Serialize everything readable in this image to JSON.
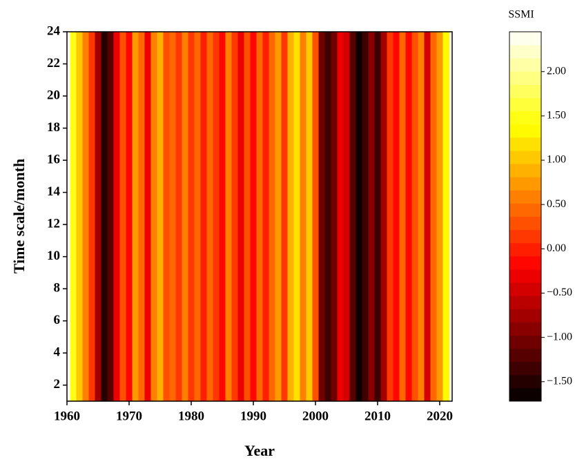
{
  "chart_data": {
    "type": "heatmap",
    "xlabel": "Year",
    "ylabel": "Time scale/month",
    "colorbar_label": "SSMI",
    "colormap": "hot",
    "x": [
      1961,
      1962,
      1963,
      1964,
      1965,
      1966,
      1967,
      1968,
      1969,
      1970,
      1971,
      1972,
      1973,
      1974,
      1975,
      1976,
      1977,
      1978,
      1979,
      1980,
      1981,
      1982,
      1983,
      1984,
      1985,
      1986,
      1987,
      1988,
      1989,
      1990,
      1991,
      1992,
      1993,
      1994,
      1995,
      1996,
      1997,
      1998,
      1999,
      2000,
      2001,
      2002,
      2003,
      2004,
      2005,
      2006,
      2007,
      2008,
      2009,
      2010,
      2011,
      2012,
      2013,
      2014,
      2015,
      2016,
      2017,
      2018,
      2019,
      2020,
      2021
    ],
    "values": [
      1.5,
      1.0,
      0.6,
      0.2,
      -0.8,
      -1.5,
      -1.2,
      -0.3,
      0.3,
      -0.2,
      0.8,
      0.4,
      -0.3,
      0.6,
      0.9,
      0.3,
      0.5,
      0.1,
      0.6,
      0.2,
      0.4,
      0.0,
      0.5,
      0.1,
      -0.2,
      0.6,
      0.1,
      -0.3,
      0.3,
      -0.1,
      0.5,
      0.0,
      0.4,
      0.7,
      0.2,
      0.9,
      1.2,
      0.6,
      1.0,
      0.3,
      -1.1,
      -1.4,
      -1.0,
      -0.3,
      -0.5,
      -1.2,
      -1.6,
      -1.4,
      -0.9,
      -1.3,
      -0.8,
      0.2,
      -0.1,
      0.5,
      -0.2,
      0.3,
      0.6,
      -0.4,
      0.4,
      0.8,
      1.3
    ],
    "xlim": [
      1960,
      2022
    ],
    "xticks": [
      1960,
      1970,
      1980,
      1990,
      2000,
      2010,
      2020
    ],
    "ylim": [
      1,
      24
    ],
    "yticks": [
      2,
      4,
      6,
      8,
      10,
      12,
      14,
      16,
      18,
      20,
      22,
      24
    ],
    "zlim": [
      -1.72,
      2.45
    ],
    "zticks": [
      {
        "value": -1.5,
        "label": "−1.50"
      },
      {
        "value": -1.0,
        "label": "−1.00"
      },
      {
        "value": -0.5,
        "label": "−0.50"
      },
      {
        "value": 0,
        "label": "0.00"
      },
      {
        "value": 0.5,
        "label": "0.50"
      },
      {
        "value": 1.0,
        "label": "1.00"
      },
      {
        "value": 1.5,
        "label": "1.50"
      },
      {
        "value": 2.0,
        "label": "2.00"
      }
    ]
  }
}
